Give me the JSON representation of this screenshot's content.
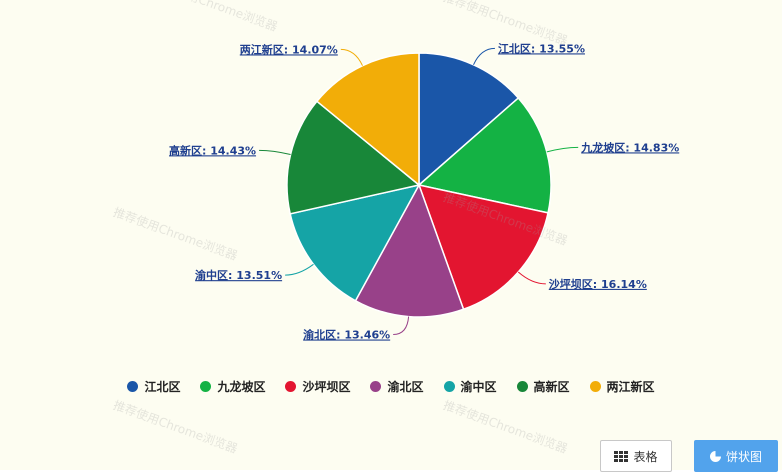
{
  "chart_data": {
    "type": "pie",
    "slices": [
      {
        "name": "江北区",
        "value": 13.55,
        "color": "#1a56a8",
        "label": "江北区: 13.55%"
      },
      {
        "name": "九龙坡区",
        "value": 14.83,
        "color": "#14b244",
        "label": "九龙坡区: 14.83%"
      },
      {
        "name": "沙坪坝区",
        "value": 16.14,
        "color": "#e31530",
        "label": "沙坪坝区: 16.14%"
      },
      {
        "name": "渝北区",
        "value": 13.46,
        "color": "#984189",
        "label": "渝北区: 13.46%"
      },
      {
        "name": "渝中区",
        "value": 13.51,
        "color": "#15a4a6",
        "label": "渝中区: 13.51%"
      },
      {
        "name": "高新区",
        "value": 14.43,
        "color": "#188739",
        "label": "高新区: 14.43%"
      },
      {
        "name": "两江新区",
        "value": 14.07,
        "color": "#f2ad08",
        "label": "两江新区: 14.07%"
      }
    ],
    "legend_placement": "bottom"
  },
  "legend": {
    "items": [
      "江北区",
      "九龙坡区",
      "沙坪坝区",
      "渝北区",
      "渝中区",
      "高新区",
      "两江新区"
    ]
  },
  "buttons": {
    "table_label": "表格",
    "pie_label": "饼状图"
  },
  "watermark": {
    "text": "推荐使用Chrome浏览器"
  }
}
